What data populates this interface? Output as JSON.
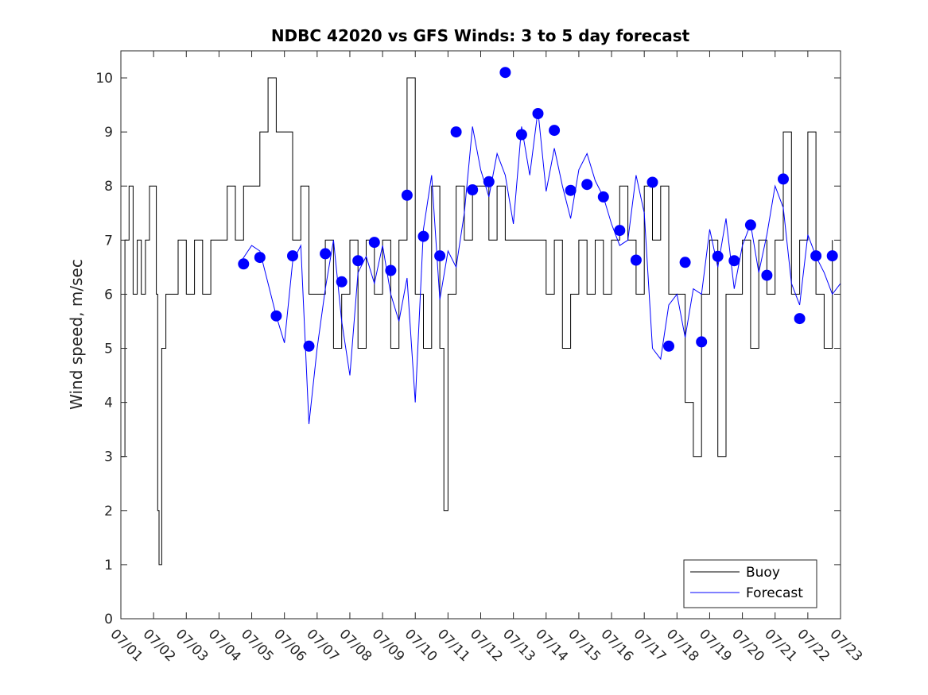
{
  "chart_data": {
    "type": "line",
    "title": "NDBC 42020 vs GFS Winds: 3 to 5 day forecast",
    "xlabel": "",
    "ylabel": "Wind speed, m/sec",
    "xlim": [
      "07/01",
      "07/23"
    ],
    "ylim": [
      0,
      10.5
    ],
    "x_tick_labels": [
      "07/01",
      "07/02",
      "07/03",
      "07/04",
      "07/05",
      "07/06",
      "07/07",
      "07/08",
      "07/09",
      "07/10",
      "07/11",
      "07/12",
      "07/13",
      "07/14",
      "07/15",
      "07/16",
      "07/17",
      "07/18",
      "07/19",
      "07/20",
      "07/21",
      "07/22",
      "07/23"
    ],
    "y_ticks": [
      0,
      1,
      2,
      3,
      4,
      5,
      6,
      7,
      8,
      9,
      10
    ],
    "grid": false,
    "legend": {
      "position": "bottom-right",
      "entries": [
        "Buoy",
        "Forecast"
      ]
    },
    "colors": {
      "buoy": "#000000",
      "forecast": "#0000ff"
    },
    "series": [
      {
        "name": "Buoy",
        "style": "line",
        "x_dates": [
          "07/01 00:00",
          "07/01 03:00",
          "07/01 06:00",
          "07/01 09:00",
          "07/01 12:00",
          "07/01 15:00",
          "07/01 18:00",
          "07/01 21:00",
          "07/02 00:00",
          "07/02 02:00",
          "07/02 03:00",
          "07/02 04:00",
          "07/02 06:00",
          "07/02 09:00",
          "07/02 12:00",
          "07/02 18:00",
          "07/03 00:00",
          "07/03 06:00",
          "07/03 12:00",
          "07/03 18:00",
          "07/04 00:00",
          "07/04 06:00",
          "07/04 12:00",
          "07/04 18:00",
          "07/05 00:00",
          "07/05 06:00",
          "07/05 12:00",
          "07/05 18:00",
          "07/06 00:00",
          "07/06 06:00",
          "07/06 12:00",
          "07/06 18:00",
          "07/07 00:00",
          "07/07 06:00",
          "07/07 12:00",
          "07/07 18:00",
          "07/08 00:00",
          "07/08 06:00",
          "07/08 12:00",
          "07/08 18:00",
          "07/09 00:00",
          "07/09 06:00",
          "07/09 12:00",
          "07/09 18:00",
          "07/10 00:00",
          "07/10 06:00",
          "07/10 12:00",
          "07/10 18:00",
          "07/10 21:00",
          "07/11 00:00",
          "07/11 06:00",
          "07/11 12:00",
          "07/11 18:00",
          "07/12 00:00",
          "07/12 06:00",
          "07/12 12:00",
          "07/12 18:00",
          "07/13 00:00",
          "07/13 06:00",
          "07/13 12:00",
          "07/13 18:00",
          "07/14 00:00",
          "07/14 06:00",
          "07/14 12:00",
          "07/14 18:00",
          "07/15 00:00",
          "07/15 06:00",
          "07/15 12:00",
          "07/15 18:00",
          "07/16 00:00",
          "07/16 06:00",
          "07/16 12:00",
          "07/16 18:00",
          "07/17 00:00",
          "07/17 06:00",
          "07/17 12:00",
          "07/17 18:00",
          "07/18 00:00",
          "07/18 06:00",
          "07/18 12:00",
          "07/18 18:00",
          "07/19 00:00",
          "07/19 06:00",
          "07/19 12:00",
          "07/19 18:00",
          "07/20 00:00",
          "07/20 06:00",
          "07/20 12:00",
          "07/20 18:00",
          "07/21 00:00",
          "07/21 06:00",
          "07/21 12:00",
          "07/21 18:00",
          "07/22 00:00",
          "07/22 06:00",
          "07/22 12:00",
          "07/22 18:00"
        ],
        "values": [
          3,
          7,
          8,
          6,
          7,
          6,
          7,
          8,
          8,
          6,
          2,
          1,
          5,
          6,
          6,
          7,
          6,
          7,
          6,
          7,
          7,
          8,
          7,
          8,
          8,
          9,
          10,
          9,
          9,
          7,
          8,
          6,
          6,
          7,
          5,
          6,
          7,
          5,
          7,
          6,
          7,
          5,
          7,
          10,
          6,
          5,
          8,
          5,
          2,
          6,
          8,
          7,
          8,
          8,
          7,
          8,
          7,
          7,
          7,
          7,
          7,
          6,
          7,
          5,
          6,
          7,
          6,
          7,
          6,
          7,
          8,
          7,
          6,
          8,
          7,
          8,
          6,
          6,
          4,
          3,
          6,
          7,
          3,
          6,
          6,
          7,
          5,
          7,
          6,
          7,
          9,
          6,
          7,
          9,
          6,
          5,
          7
        ]
      },
      {
        "name": "Forecast",
        "style": "line",
        "x_dates": [
          "07/04 16:00",
          "07/05 00:00",
          "07/05 06:00",
          "07/05 12:00",
          "07/05 18:00",
          "07/06 00:00",
          "07/06 06:00",
          "07/06 12:00",
          "07/06 18:00",
          "07/07 00:00",
          "07/07 06:00",
          "07/07 12:00",
          "07/07 18:00",
          "07/08 00:00",
          "07/08 06:00",
          "07/08 12:00",
          "07/08 18:00",
          "07/09 00:00",
          "07/09 06:00",
          "07/09 12:00",
          "07/09 18:00",
          "07/10 00:00",
          "07/10 06:00",
          "07/10 12:00",
          "07/10 18:00",
          "07/11 00:00",
          "07/11 06:00",
          "07/11 12:00",
          "07/11 18:00",
          "07/12 00:00",
          "07/12 06:00",
          "07/12 12:00",
          "07/12 18:00",
          "07/13 00:00",
          "07/13 06:00",
          "07/13 12:00",
          "07/13 18:00",
          "07/14 00:00",
          "07/14 06:00",
          "07/14 12:00",
          "07/14 18:00",
          "07/15 00:00",
          "07/15 06:00",
          "07/15 12:00",
          "07/15 18:00",
          "07/16 00:00",
          "07/16 06:00",
          "07/16 12:00",
          "07/16 18:00",
          "07/17 00:00",
          "07/17 06:00",
          "07/17 12:00",
          "07/17 18:00",
          "07/18 00:00",
          "07/18 06:00",
          "07/18 12:00",
          "07/18 18:00",
          "07/19 00:00",
          "07/19 06:00",
          "07/19 12:00",
          "07/19 18:00",
          "07/20 00:00",
          "07/20 06:00",
          "07/20 12:00",
          "07/20 18:00",
          "07/21 00:00",
          "07/21 06:00",
          "07/21 12:00",
          "07/21 18:00",
          "07/22 00:00",
          "07/22 06:00",
          "07/22 12:00",
          "07/22 18:00",
          "07/23 00:00"
        ],
        "values": [
          6.6,
          6.9,
          6.8,
          6.2,
          5.6,
          5.1,
          6.6,
          6.9,
          3.6,
          5.0,
          6.1,
          7.0,
          5.5,
          4.5,
          6.4,
          6.7,
          6.2,
          6.9,
          6.0,
          5.5,
          6.3,
          4.0,
          7.2,
          8.2,
          5.9,
          6.8,
          6.5,
          7.5,
          9.1,
          8.3,
          7.8,
          8.6,
          8.2,
          7.3,
          9.1,
          8.2,
          9.4,
          7.9,
          8.7,
          8.0,
          7.4,
          8.3,
          8.6,
          8.1,
          7.8,
          7.3,
          6.9,
          7.0,
          8.2,
          7.5,
          5.0,
          4.8,
          5.8,
          6.0,
          5.2,
          6.1,
          6.0,
          7.2,
          6.5,
          7.4,
          6.1,
          6.9,
          7.3,
          6.4,
          7.1,
          8.0,
          7.6,
          6.2,
          5.8,
          7.1,
          6.7,
          6.4,
          6.0,
          6.2
        ]
      },
      {
        "name": "",
        "style": "markers",
        "x_dates": [
          "07/04 18:00",
          "07/05 06:00",
          "07/05 18:00",
          "07/06 06:00",
          "07/06 18:00",
          "07/07 06:00",
          "07/07 18:00",
          "07/08 06:00",
          "07/08 18:00",
          "07/09 06:00",
          "07/09 18:00",
          "07/10 06:00",
          "07/10 18:00",
          "07/11 06:00",
          "07/11 18:00",
          "07/12 06:00",
          "07/12 18:00",
          "07/13 06:00",
          "07/13 18:00",
          "07/14 06:00",
          "07/14 18:00",
          "07/15 06:00",
          "07/15 18:00",
          "07/16 06:00",
          "07/16 18:00",
          "07/17 06:00",
          "07/17 18:00",
          "07/18 06:00",
          "07/18 18:00",
          "07/19 06:00",
          "07/19 18:00",
          "07/20 06:00",
          "07/20 18:00",
          "07/21 06:00",
          "07/21 18:00",
          "07/22 06:00",
          "07/22 18:00"
        ],
        "values": [
          6.56,
          6.68,
          5.6,
          6.71,
          5.04,
          6.75,
          6.23,
          6.62,
          6.96,
          6.44,
          7.83,
          7.07,
          6.71,
          9.0,
          7.93,
          8.08,
          10.1,
          8.95,
          9.34,
          9.03,
          7.92,
          8.03,
          7.8,
          7.18,
          6.63,
          8.07,
          5.04,
          6.59,
          5.12,
          6.7,
          6.62,
          7.28,
          6.35,
          8.13,
          5.55,
          6.71,
          6.71
        ]
      }
    ]
  }
}
